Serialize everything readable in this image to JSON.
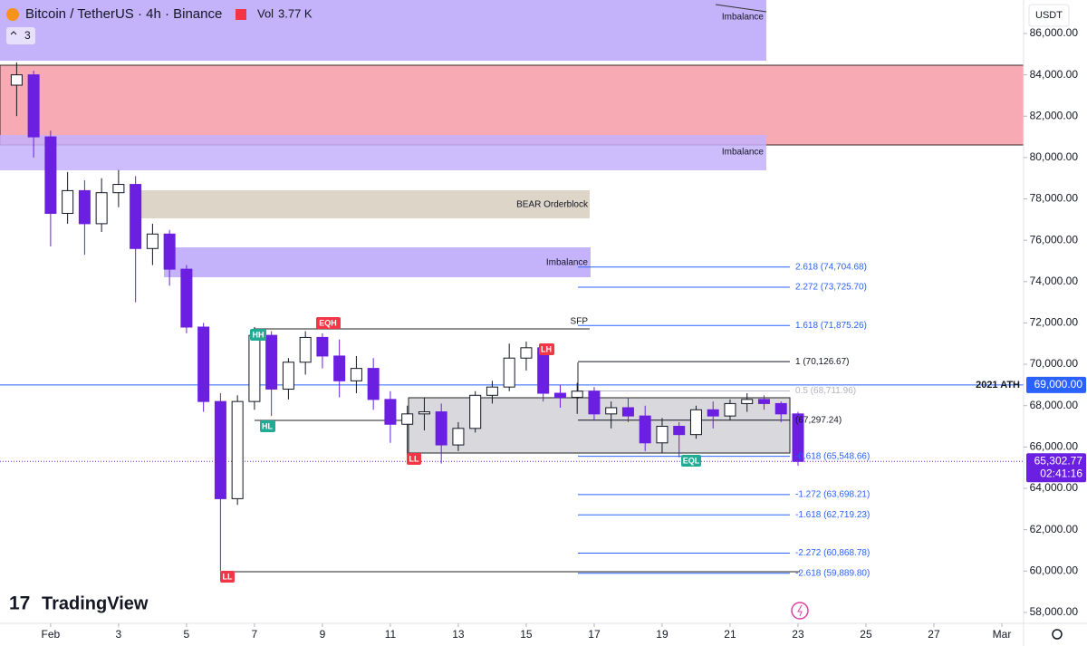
{
  "chart_data": {
    "type": "candlestick",
    "symbol": "Bitcoin / TetherUS · 4h · Binance",
    "volume_label": "Vol",
    "volume": "3.77 K",
    "indicator_count": 3,
    "currency": "USDT",
    "brand": "TradingView",
    "x": [
      0,
      0.5,
      1,
      1.5,
      2,
      2.5,
      3,
      3.5,
      4,
      4.5,
      5,
      5.5,
      6,
      6.5,
      7,
      7.5,
      8,
      8.5,
      9,
      9.5,
      10,
      10.5,
      11,
      11.5,
      12,
      12.5,
      13,
      13.5,
      14,
      14.5,
      15,
      15.5,
      16,
      16.5,
      17,
      17.5,
      18,
      18.5,
      19,
      19.5,
      20,
      20.5,
      21,
      21.5,
      22,
      22.5,
      23
    ],
    "open": [
      83500,
      84000,
      81000,
      77300,
      78400,
      76800,
      78300,
      78700,
      75600,
      76300,
      74600,
      71800,
      68200,
      63500,
      68200,
      71400,
      68800,
      70100,
      71300,
      70400,
      69200,
      69800,
      68300,
      67100,
      67600,
      67700,
      66100,
      66900,
      68500,
      68900,
      70300,
      70800,
      68600,
      68400,
      68700,
      67600,
      67900,
      67500,
      66200,
      67000,
      66600,
      67800,
      67500,
      68100,
      68300,
      68100,
      67600
    ],
    "high": [
      84600,
      84200,
      81300,
      79300,
      78900,
      79000,
      79400,
      79100,
      76800,
      76500,
      74800,
      72000,
      68600,
      68500,
      71800,
      71600,
      70300,
      71600,
      71500,
      71200,
      70400,
      70300,
      68700,
      68000,
      68400,
      68100,
      67200,
      68700,
      69200,
      71000,
      71100,
      71000,
      69000,
      69100,
      68900,
      68200,
      68400,
      68000,
      67400,
      67200,
      68000,
      68200,
      68300,
      68600,
      68500,
      68200,
      67700
    ],
    "low": [
      82000,
      80000,
      75700,
      76800,
      75300,
      76400,
      77600,
      73000,
      74800,
      73800,
      71500,
      67700,
      60000,
      63200,
      67800,
      67500,
      68300,
      69500,
      69800,
      68400,
      68600,
      67800,
      66200,
      65600,
      66800,
      65200,
      65800,
      66700,
      68100,
      68700,
      69700,
      68200,
      67900,
      67600,
      67300,
      66900,
      67200,
      65800,
      65700,
      65500,
      66400,
      66900,
      67300,
      67700,
      67800,
      67200,
      65100
    ],
    "close": [
      84000,
      81000,
      77300,
      78400,
      76800,
      78300,
      78700,
      75600,
      76300,
      74600,
      71800,
      68200,
      63500,
      68200,
      71400,
      68800,
      70100,
      71300,
      70400,
      69200,
      69800,
      68300,
      67100,
      67600,
      67700,
      66100,
      66900,
      68500,
      68900,
      70300,
      70800,
      68600,
      68400,
      68700,
      67600,
      67900,
      67500,
      66200,
      67000,
      66600,
      67800,
      67500,
      68100,
      68300,
      68100,
      67600,
      65302.77
    ],
    "up_color": "#ffffff",
    "down_color": "#6b1fe0",
    "xlim": [
      -0.49,
      29.64
    ],
    "ylim": [
      57470,
      87620
    ],
    "grid": false,
    "xticks": [
      {
        "value": 1,
        "label": "Feb"
      },
      3,
      5,
      7,
      9,
      11,
      13,
      15,
      17,
      19,
      21,
      23,
      25,
      27,
      {
        "value": 29,
        "label": "Mar"
      }
    ],
    "yticks": [
      {
        "value": 58000,
        "label": "58,000.00"
      },
      {
        "value": 60000,
        "label": "60,000.00"
      },
      {
        "value": 62000,
        "label": "62,000.00"
      },
      {
        "value": 64000,
        "label": "64,000.00"
      },
      {
        "value": 66000,
        "label": "66,000.00"
      },
      {
        "value": 68000,
        "label": "68,000.00"
      },
      {
        "value": 70000,
        "label": "70,000.00"
      },
      {
        "value": 72000,
        "label": "72,000.00"
      },
      {
        "value": 74000,
        "label": "74,000.00"
      },
      {
        "value": 76000,
        "label": "76,000.00"
      },
      {
        "value": 78000,
        "label": "78,000.00"
      },
      {
        "value": 80000,
        "label": "80,000.00"
      },
      {
        "value": 82000,
        "label": "82,000.00"
      },
      {
        "value": 84000,
        "label": "84,000.00"
      },
      {
        "value": 86000,
        "label": "86,000.00"
      }
    ],
    "fib_levels": [
      {
        "value": 74704.68,
        "label": "2.618 (74,704.68)",
        "color": "#2962ff"
      },
      {
        "value": 73725.7,
        "label": "2.272 (73,725.70)",
        "color": "#2962ff"
      },
      {
        "value": 71875.26,
        "label": "1.618 (71,875.26)",
        "color": "#2962ff"
      },
      {
        "value": 70126.67,
        "label": "1 (70,126.67)",
        "color": "#131722"
      },
      {
        "value": 68711.96,
        "label": "0.5 (68,711.96)",
        "color": "#b2b5be"
      },
      {
        "value": 67297.24,
        "label": "(67,297.24)",
        "color": "#131722"
      },
      {
        "value": 65548.66,
        "label": "-0.618 (65,548.66)",
        "color": "#2962ff"
      },
      {
        "value": 63698.21,
        "label": "-1.272 (63,698.21)",
        "color": "#2962ff"
      },
      {
        "value": 62719.23,
        "label": "-1.618 (62,719.23)",
        "color": "#2962ff"
      },
      {
        "value": 60868.78,
        "label": "-2.272 (60,868.78)",
        "color": "#2962ff"
      },
      {
        "value": 59889.8,
        "label": "-2.618 (59,889.80)",
        "color": "#2962ff"
      }
    ],
    "ath": {
      "name": "2021 ATH",
      "value": 69000,
      "label": "69,000.00"
    },
    "last_price": {
      "value": 65302.77,
      "label": "65,302.77",
      "countdown": "02:41:16"
    },
    "zone_labels": [
      "Imbalance",
      "Imbalance",
      "BEAR Orderblock",
      "Imbalance"
    ],
    "sfp": "SFP",
    "markers": [
      "HH",
      "EQH",
      "HL",
      "LL",
      "LH",
      "EQL",
      "LL"
    ]
  }
}
